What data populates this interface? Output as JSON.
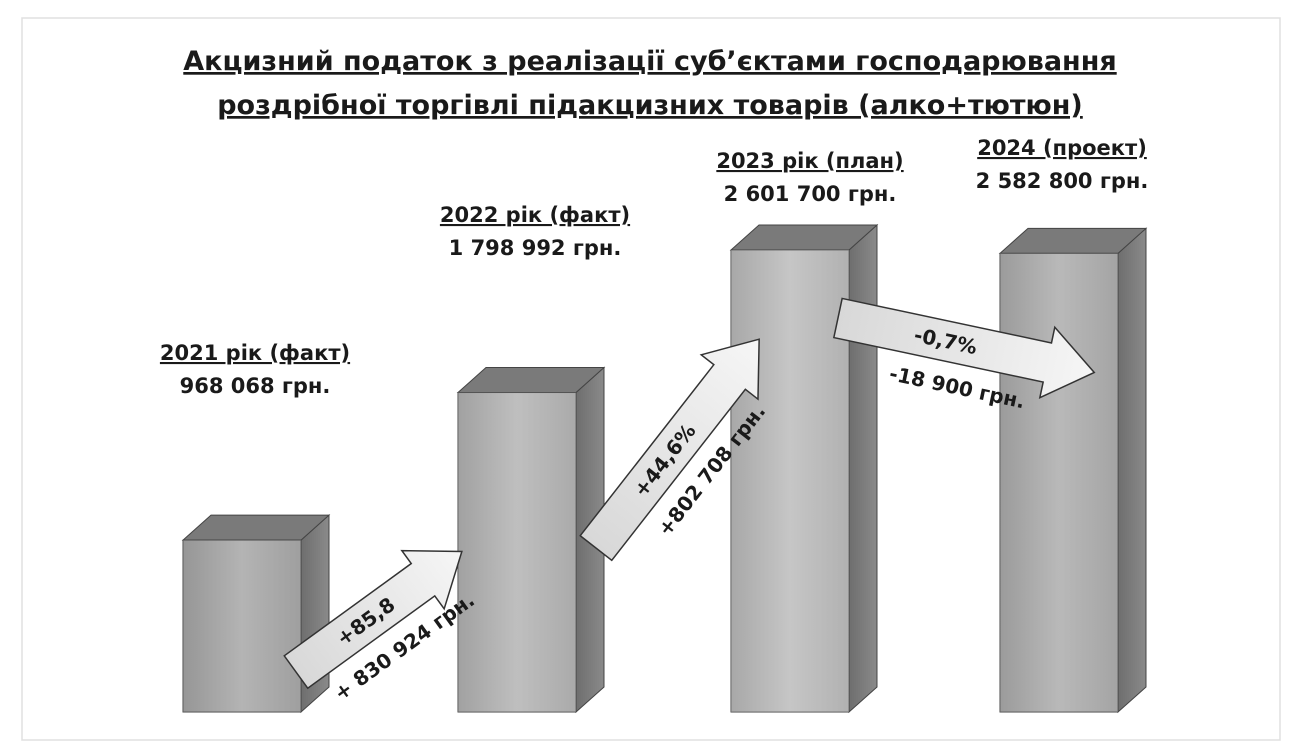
{
  "chart_data": {
    "type": "bar3d",
    "title": [
      "Акцизний податок з реалізації суб’єктами господарювання",
      "роздрібної торгівлі підакцизних товарів  (алко+тютюн)"
    ],
    "categories": [
      "2021 рік (факт)",
      "2022 рік (факт)",
      "2023 рік (план)",
      "2024 (проект)"
    ],
    "values": [
      968068,
      1798992,
      2601700,
      2582800
    ],
    "value_labels": [
      "968 068 грн.",
      "1 798 992 грн.",
      "2 601 700 грн.",
      "2 582 800 грн."
    ],
    "annotations": [
      {
        "percent": "+85,8",
        "change": "+ 830 924 грн."
      },
      {
        "percent": "+44,6%",
        "change": "+802 708 грн."
      },
      {
        "percent": "-0,7%",
        "change": "-18 900 грн."
      }
    ]
  }
}
